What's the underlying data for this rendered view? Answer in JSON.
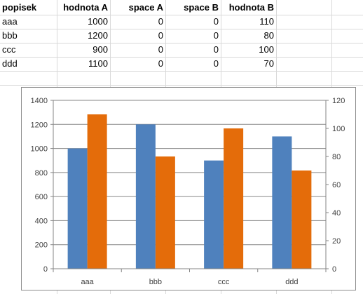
{
  "sheet": {
    "headers": [
      "popisek",
      "hodnota A",
      "space A",
      "space B",
      "hodnota B"
    ],
    "rows": [
      [
        "aaa",
        "1000",
        "0",
        "0",
        "110"
      ],
      [
        "bbb",
        "1200",
        "0",
        "0",
        "80"
      ],
      [
        "ccc",
        "900",
        "0",
        "0",
        "100"
      ],
      [
        "ddd",
        "1100",
        "0",
        "0",
        "70"
      ]
    ]
  },
  "chart_data": {
    "type": "bar",
    "categories": [
      "aaa",
      "bbb",
      "ccc",
      "ddd"
    ],
    "series": [
      {
        "values": [
          1000,
          1200,
          900,
          1100
        ],
        "axis": "primary",
        "color": "#4f81bd"
      },
      {
        "values": [
          110,
          80,
          100,
          70
        ],
        "axis": "secondary",
        "color": "#e46c0a"
      }
    ],
    "title": "",
    "xlabel": "",
    "ylabel": "",
    "ylim": [
      0,
      1400
    ],
    "y2lim": [
      0,
      120
    ],
    "yticks": [
      "0",
      "200",
      "400",
      "600",
      "800",
      "1000",
      "1200",
      "1400"
    ],
    "y2ticks": [
      "0",
      "20",
      "40",
      "60",
      "80",
      "100",
      "120"
    ],
    "grid": true,
    "legend": "none"
  }
}
